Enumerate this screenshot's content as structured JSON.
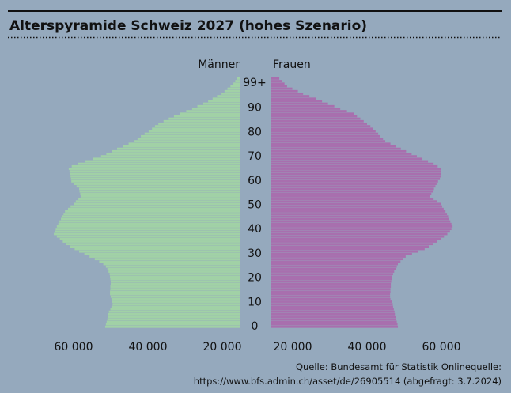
{
  "chart_data": {
    "type": "bar",
    "orientation": "horizontal-pyramid",
    "title": "Alterspyramide Schweiz 2027 (hohes Szenario)",
    "source_line1": "Quelle: Bundesamt für Statistik Onlinequelle:",
    "source_line2": "https://www.bfs.admin.ch/asset/de/26905514 (abgefragt: 3.7.2024)",
    "age_tick_labels": [
      {
        "age": 0,
        "label": "0"
      },
      {
        "age": 10,
        "label": "10"
      },
      {
        "age": 20,
        "label": "20"
      },
      {
        "age": 30,
        "label": "30"
      },
      {
        "age": 40,
        "label": "40"
      },
      {
        "age": 50,
        "label": "50"
      },
      {
        "age": 60,
        "label": "60"
      },
      {
        "age": 70,
        "label": "70"
      },
      {
        "age": 80,
        "label": "80"
      },
      {
        "age": 90,
        "label": "90"
      },
      {
        "age": 99,
        "label": "99+"
      }
    ],
    "x_ticks_left": [
      {
        "value": 60000,
        "label": "60 000"
      },
      {
        "value": 40000,
        "label": "40 000"
      },
      {
        "value": 20000,
        "label": "20 000"
      }
    ],
    "x_ticks_right": [
      {
        "value": 20000,
        "label": "20 000"
      },
      {
        "value": 40000,
        "label": "40 000"
      },
      {
        "value": 60000,
        "label": "60 000"
      }
    ],
    "colors": {
      "background": "#95a9bd",
      "men": "#a1d1a6",
      "women": "#a86fae",
      "text": "#111111"
    },
    "grid": false,
    "categories_note": "ages 0 to 99+",
    "series": [
      {
        "name": "Männer",
        "side": "left",
        "values": [
          51500,
          51300,
          51100,
          50900,
          50800,
          50700,
          50500,
          50100,
          49800,
          49500,
          49600,
          49800,
          50000,
          50200,
          50200,
          50100,
          50100,
          50000,
          50000,
          50100,
          50200,
          50300,
          50600,
          50900,
          51300,
          52000,
          53100,
          54300,
          55700,
          57100,
          58500,
          59700,
          60900,
          62100,
          62900,
          63700,
          64500,
          65300,
          65000,
          64800,
          64500,
          64100,
          63800,
          63400,
          63000,
          62700,
          62300,
          61500,
          60800,
          60000,
          59400,
          58700,
          58100,
          58200,
          58400,
          58500,
          59200,
          59900,
          60600,
          60700,
          60800,
          61000,
          61100,
          61300,
          60500,
          58900,
          56800,
          54700,
          52600,
          51200,
          49700,
          48300,
          46700,
          45200,
          43600,
          42800,
          41900,
          40900,
          39800,
          38900,
          38100,
          37200,
          35800,
          34400,
          33000,
          31400,
          29700,
          28100,
          26700,
          25200,
          23800,
          22600,
          21400,
          20200,
          19400,
          18600,
          17800,
          17000,
          16500,
          16000
        ]
      },
      {
        "name": "Frauen",
        "side": "right",
        "values": [
          48300,
          48200,
          48000,
          47800,
          47700,
          47500,
          47400,
          47200,
          47000,
          46900,
          46600,
          46300,
          46200,
          46200,
          46300,
          46300,
          46400,
          46400,
          46500,
          46700,
          46800,
          47000,
          47300,
          47700,
          48000,
          48300,
          49000,
          49700,
          50400,
          52100,
          53800,
          55500,
          56600,
          57800,
          58900,
          59800,
          60700,
          61600,
          62300,
          62700,
          63000,
          62700,
          62400,
          62100,
          61800,
          61500,
          61100,
          60600,
          60200,
          59800,
          58900,
          57900,
          57000,
          57300,
          57700,
          58000,
          58400,
          58700,
          59100,
          59600,
          60000,
          60000,
          59900,
          59900,
          59000,
          57900,
          56400,
          54900,
          53400,
          52000,
          50500,
          49100,
          47700,
          46300,
          44900,
          44300,
          43600,
          43000,
          42300,
          41600,
          40900,
          40000,
          39100,
          38200,
          37300,
          36400,
          34600,
          32800,
          31200,
          29500,
          27900,
          26200,
          24500,
          22800,
          21400,
          19900,
          18500,
          17800,
          17100,
          16400
        ]
      }
    ]
  }
}
